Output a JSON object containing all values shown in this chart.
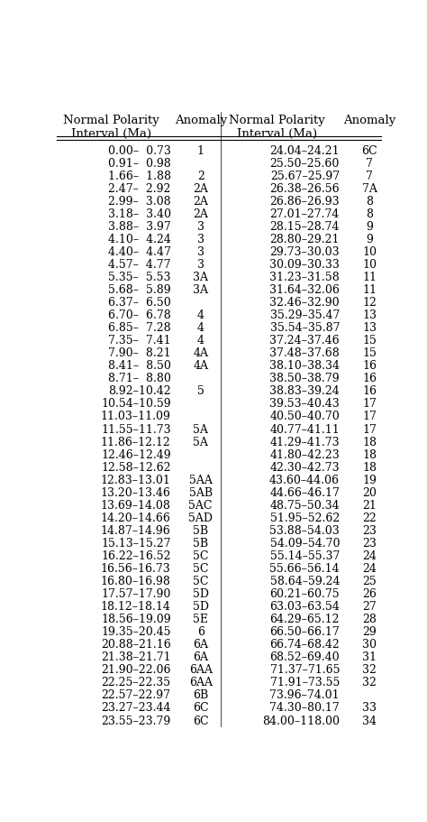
{
  "title_left": "Normal Polarity\nInterval (Ma)",
  "title_col2": "Anomaly",
  "title_right": "Normal Polarity\nInterval (Ma)",
  "title_col4": "Anomaly",
  "rows": [
    [
      "0.00–  0.73",
      "1",
      "24.04–24.21",
      "6C"
    ],
    [
      "0.91–  0.98",
      "",
      "25.50–25.60",
      "7"
    ],
    [
      "1.66–  1.88",
      "2",
      "25.67–25.97",
      "7"
    ],
    [
      "2.47–  2.92",
      "2A",
      "26.38–26.56",
      "7A"
    ],
    [
      "2.99–  3.08",
      "2A",
      "26.86–26.93",
      "8"
    ],
    [
      "3.18–  3.40",
      "2A",
      "27.01–27.74",
      "8"
    ],
    [
      "3.88–  3.97",
      "3",
      "28.15–28.74",
      "9"
    ],
    [
      "4.10–  4.24",
      "3",
      "28.80–29.21",
      "9"
    ],
    [
      "4.40–  4.47",
      "3",
      "29.73–30.03",
      "10"
    ],
    [
      "4.57–  4.77",
      "3",
      "30.09–30.33",
      "10"
    ],
    [
      "5.35–  5.53",
      "3A",
      "31.23–31.58",
      "11"
    ],
    [
      "5.68–  5.89",
      "3A",
      "31.64–32.06",
      "11"
    ],
    [
      "6.37–  6.50",
      "",
      "32.46–32.90",
      "12"
    ],
    [
      "6.70–  6.78",
      "4",
      "35.29–35.47",
      "13"
    ],
    [
      "6.85–  7.28",
      "4",
      "35.54–35.87",
      "13"
    ],
    [
      "7.35–  7.41",
      "4",
      "37.24–37.46",
      "15"
    ],
    [
      "7.90–  8.21",
      "4A",
      "37.48–37.68",
      "15"
    ],
    [
      "8.41–  8.50",
      "4A",
      "38.10–38.34",
      "16"
    ],
    [
      "8.71–  8.80",
      "",
      "38.50–38.79",
      "16"
    ],
    [
      "8.92–10.42",
      "5",
      "38.83–39.24",
      "16"
    ],
    [
      "10.54–10.59",
      "",
      "39.53–40.43",
      "17"
    ],
    [
      "11.03–11.09",
      "",
      "40.50–40.70",
      "17"
    ],
    [
      "11.55–11.73",
      "5A",
      "40.77–41.11",
      "17"
    ],
    [
      "11.86–12.12",
      "5A",
      "41.29–41.73",
      "18"
    ],
    [
      "12.46–12.49",
      "",
      "41.80–42.23",
      "18"
    ],
    [
      "12.58–12.62",
      "",
      "42.30–42.73",
      "18"
    ],
    [
      "12.83–13.01",
      "5AA",
      "43.60–44.06",
      "19"
    ],
    [
      "13.20–13.46",
      "5AB",
      "44.66–46.17",
      "20"
    ],
    [
      "13.69–14.08",
      "5AC",
      "48.75–50.34",
      "21"
    ],
    [
      "14.20–14.66",
      "5AD",
      "51.95–52.62",
      "22"
    ],
    [
      "14.87–14.96",
      "5B",
      "53.88–54.03",
      "23"
    ],
    [
      "15.13–15.27",
      "5B",
      "54.09–54.70",
      "23"
    ],
    [
      "16.22–16.52",
      "5C",
      "55.14–55.37",
      "24"
    ],
    [
      "16.56–16.73",
      "5C",
      "55.66–56.14",
      "24"
    ],
    [
      "16.80–16.98",
      "5C",
      "58.64–59.24",
      "25"
    ],
    [
      "17.57–17.90",
      "5D",
      "60.21–60.75",
      "26"
    ],
    [
      "18.12–18.14",
      "5D",
      "63.03–63.54",
      "27"
    ],
    [
      "18.56–19.09",
      "5E",
      "64.29–65.12",
      "28"
    ],
    [
      "19.35–20.45",
      "6",
      "66.50–66.17",
      "29"
    ],
    [
      "20.88–21.16",
      "6A",
      "66.74–68.42",
      "30"
    ],
    [
      "21.38–21.71",
      "6A",
      "68.52–69.40",
      "31"
    ],
    [
      "21.90–22.06",
      "6AA",
      "71.37–71.65",
      "32"
    ],
    [
      "22.25–22.35",
      "6AA",
      "71.91–73.55",
      "32"
    ],
    [
      "22.57–22.97",
      "6B",
      "73.96–74.01",
      ""
    ],
    [
      "23.27–23.44",
      "6C",
      "74.30–80.17",
      "33"
    ],
    [
      "23.55–23.79",
      "6C",
      "84.00–118.00",
      "34"
    ]
  ],
  "font_family": "serif",
  "font_size": 9.0,
  "header_font_size": 9.5,
  "bg_color": "#ffffff",
  "text_color": "#000000",
  "line_color": "#000000"
}
